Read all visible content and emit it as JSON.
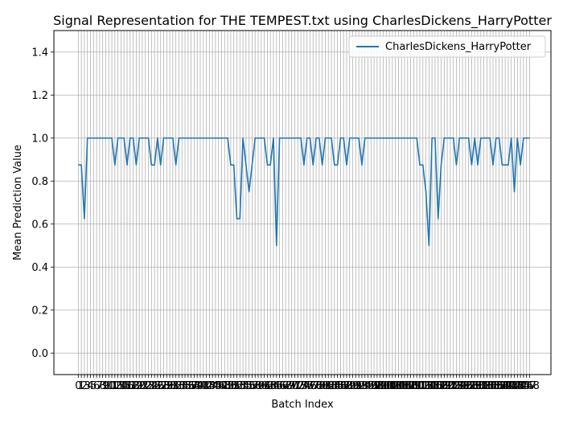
{
  "chart_data": {
    "type": "line",
    "title": "Signal Representation for THE TEMPEST.txt using CharlesDickens_HarryPotter",
    "xlabel": "Batch Index",
    "ylabel": "Mean Prediction Value",
    "xlim": [
      -8,
      155
    ],
    "ylim": [
      -0.1,
      1.5
    ],
    "yticks": [
      "0.0",
      "0.2",
      "0.4",
      "0.6",
      "0.8",
      "1.0",
      "1.2",
      "1.4"
    ],
    "ytick_values": [
      0.0,
      0.2,
      0.4,
      0.6,
      0.8,
      1.0,
      1.2,
      1.4
    ],
    "grid": "vertical-and-horizontal",
    "legend_position": "top-right",
    "colors": {
      "series": "#1f77b4",
      "grid": "#b0b0b0"
    },
    "series": [
      {
        "name": "CharlesDickens_HarryPotter",
        "values": [
          0.875,
          0.875,
          0.625,
          1,
          1,
          1,
          1,
          1,
          1,
          1,
          1,
          1,
          0.875,
          1,
          1,
          1,
          0.875,
          1,
          1,
          0.875,
          1,
          1,
          1,
          1,
          0.875,
          0.875,
          1,
          0.875,
          1,
          1,
          1,
          1,
          0.875,
          1,
          1,
          1,
          1,
          1,
          1,
          1,
          1,
          1,
          1,
          1,
          1,
          1,
          1,
          1,
          1,
          1,
          0.875,
          0.875,
          0.625,
          0.625,
          1,
          0.875,
          0.75,
          0.875,
          1,
          1,
          1,
          1,
          0.875,
          0.875,
          1,
          0.5,
          1,
          1,
          1,
          1,
          1,
          1,
          1,
          1,
          0.875,
          1,
          1,
          0.875,
          1,
          1,
          0.875,
          1,
          1,
          1,
          0.875,
          0.875,
          1,
          1,
          0.875,
          1,
          1,
          1,
          1,
          0.875,
          1,
          1,
          1,
          1,
          1,
          1,
          1,
          1,
          1,
          1,
          1,
          1,
          1,
          1,
          1,
          1,
          1,
          1,
          0.875,
          0.875,
          0.75,
          0.5,
          1,
          1,
          0.625,
          0.875,
          1,
          1,
          1,
          1,
          0.875,
          1,
          1,
          1,
          1,
          0.875,
          1,
          0.875,
          1,
          1,
          1,
          1,
          0.875,
          1,
          1,
          0.875,
          0.875,
          0.875,
          1,
          0.75,
          1,
          0.875,
          1,
          1,
          1
        ]
      }
    ]
  }
}
